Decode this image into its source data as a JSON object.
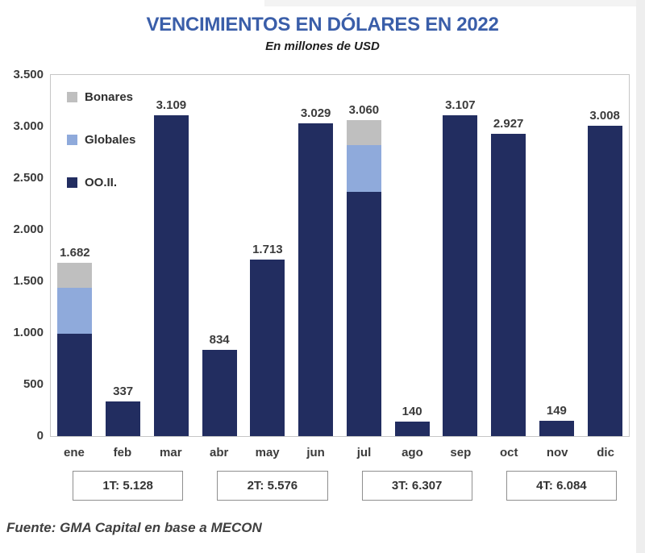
{
  "page": {
    "title": "VENCIMIENTOS EN DÓLARES EN 2022",
    "subtitle": "En millones de USD",
    "source": "Fuente: GMA Capital en base a MECON"
  },
  "colors": {
    "title_blue": "#3A5EA9",
    "ooii_navy": "#222D60",
    "globales_blue": "#8FAADB",
    "bonares_gray": "#BFBFBF",
    "text_dark": "#3B3B3B"
  },
  "chart_data": {
    "type": "bar",
    "stacked": true,
    "title": "VENCIMIENTOS EN DÓLARES EN 2022",
    "subtitle": "En millones de USD",
    "unit": "millones de USD",
    "categories": [
      "ene",
      "feb",
      "mar",
      "abr",
      "may",
      "jun",
      "jul",
      "ago",
      "sep",
      "oct",
      "nov",
      "dic"
    ],
    "series": [
      {
        "name": "OO.II.",
        "color": "#222D60",
        "values": [
          990,
          337,
          3109,
          834,
          1713,
          3029,
          2367,
          140,
          3107,
          2927,
          149,
          3008
        ]
      },
      {
        "name": "Globales",
        "color": "#8FAADB",
        "values": [
          445,
          0,
          0,
          0,
          0,
          0,
          452,
          0,
          0,
          0,
          0,
          0
        ]
      },
      {
        "name": "Bonares",
        "color": "#BFBFBF",
        "values": [
          247,
          0,
          0,
          0,
          0,
          0,
          241,
          0,
          0,
          0,
          0,
          0
        ]
      }
    ],
    "totals": [
      1682,
      337,
      3109,
      834,
      1713,
      3029,
      3060,
      140,
      3107,
      2927,
      149,
      3008
    ],
    "total_labels": [
      "1.682",
      "337",
      "3.109",
      "834",
      "1.713",
      "3.029",
      "3.060",
      "140",
      "3.107",
      "2.927",
      "149",
      "3.008"
    ],
    "y_ticks": [
      "3.500",
      "3.000",
      "2.500",
      "2.000",
      "1.500",
      "1.000",
      "500",
      "0"
    ],
    "ylim": [
      0,
      3500
    ],
    "grid": false,
    "legend_position": "top-left-inside",
    "legend": [
      {
        "label": "Bonares",
        "color": "#BFBFBF"
      },
      {
        "label": "Globales",
        "color": "#8FAADB"
      },
      {
        "label": "OO.II.",
        "color": "#222D60"
      }
    ],
    "quarter_boxes": [
      {
        "label": "1T: 5.128",
        "months": [
          0,
          2
        ]
      },
      {
        "label": "2T: 5.576",
        "months": [
          3,
          5
        ]
      },
      {
        "label": "3T: 6.307",
        "months": [
          6,
          8
        ]
      },
      {
        "label": "4T: 6.084",
        "months": [
          9,
          11
        ]
      }
    ]
  }
}
